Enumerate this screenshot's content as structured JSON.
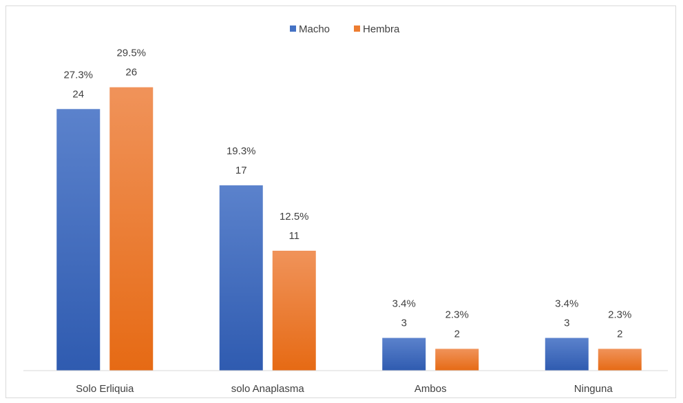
{
  "chart_data": {
    "type": "bar",
    "categories": [
      "Solo Erliquia",
      "solo Anaplasma",
      "Ambos",
      "Ninguna"
    ],
    "series": [
      {
        "name": "Macho",
        "color": "#4472C4",
        "values": [
          24,
          17,
          3,
          3
        ],
        "percent_labels": [
          "27.3%",
          "19.3%",
          "3.4%",
          "3.4%"
        ]
      },
      {
        "name": "Hembra",
        "color": "#ED7D31",
        "values": [
          26,
          11,
          2,
          2
        ],
        "percent_labels": [
          "29.5%",
          "12.5%",
          "2.3%",
          "2.3%"
        ]
      }
    ],
    "ylim": [
      0,
      28
    ],
    "grid": false,
    "legend_position": "top-center",
    "title": "",
    "xlabel": "",
    "ylabel": ""
  }
}
